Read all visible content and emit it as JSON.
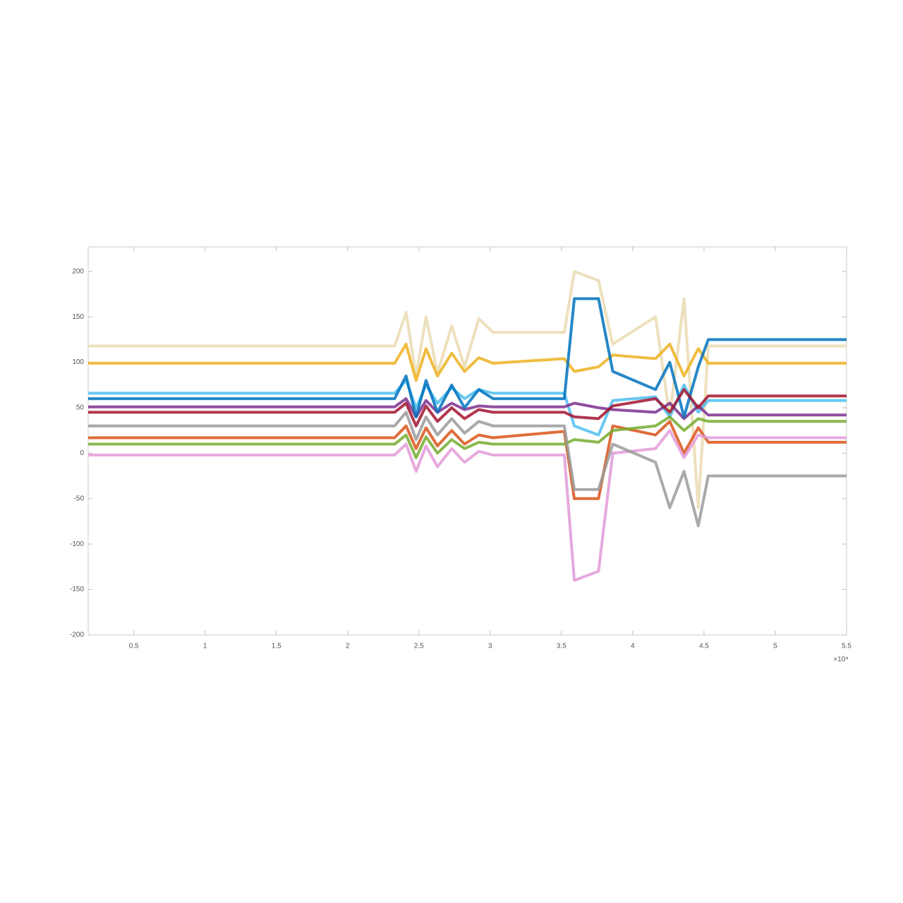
{
  "chart_data": {
    "type": "line",
    "x": [
      0.18,
      2.33,
      2.41,
      2.48,
      2.55,
      2.63,
      2.73,
      2.82,
      2.92,
      3.02,
      3.52,
      3.59,
      3.76,
      3.86,
      4.16,
      4.26,
      4.36,
      4.46,
      4.53,
      5.5
    ],
    "series": [
      {
        "color": "#eadbb0",
        "values": [
          118,
          118,
          155,
          85,
          150,
          88,
          140,
          95,
          148,
          133,
          133,
          200,
          190,
          120,
          150,
          40,
          170,
          -60,
          118,
          118
        ]
      },
      {
        "color": "#edb120",
        "values": [
          99,
          99,
          120,
          80,
          115,
          85,
          110,
          90,
          105,
          99,
          104,
          90,
          95,
          108,
          104,
          120,
          85,
          115,
          99,
          99
        ]
      },
      {
        "color": "#4dbeee",
        "values": [
          66,
          66,
          80,
          50,
          75,
          55,
          72,
          60,
          70,
          66,
          66,
          30,
          20,
          58,
          62,
          40,
          75,
          45,
          58,
          58
        ]
      },
      {
        "color": "#7e2f8e",
        "values": [
          51,
          51,
          60,
          40,
          58,
          45,
          55,
          48,
          52,
          51,
          51,
          55,
          50,
          48,
          45,
          55,
          38,
          52,
          42,
          42
        ]
      },
      {
        "color": "#d95319",
        "values": [
          17,
          17,
          30,
          5,
          28,
          8,
          25,
          10,
          20,
          17,
          24,
          -50,
          -50,
          30,
          20,
          35,
          0,
          28,
          12,
          12
        ]
      },
      {
        "color": "#77ac30",
        "values": [
          10,
          10,
          20,
          -5,
          18,
          0,
          15,
          5,
          12,
          10,
          10,
          15,
          12,
          25,
          30,
          40,
          25,
          38,
          35,
          35
        ]
      },
      {
        "color": "#e39ad8",
        "values": [
          -2,
          -2,
          10,
          -20,
          8,
          -15,
          5,
          -10,
          2,
          -2,
          -2,
          -140,
          -130,
          0,
          5,
          25,
          -5,
          20,
          17,
          17
        ]
      },
      {
        "color": "#0072bd",
        "values": [
          60,
          60,
          85,
          40,
          80,
          45,
          75,
          50,
          70,
          60,
          60,
          170,
          170,
          90,
          70,
          100,
          40,
          95,
          125,
          125
        ]
      },
      {
        "color": "#a2142f",
        "values": [
          45,
          45,
          55,
          30,
          52,
          35,
          50,
          38,
          48,
          45,
          45,
          40,
          38,
          52,
          60,
          45,
          70,
          50,
          63,
          63
        ]
      },
      {
        "color": "#9a9a9a",
        "values": [
          30,
          30,
          45,
          15,
          40,
          20,
          38,
          22,
          35,
          30,
          30,
          -40,
          -40,
          10,
          -10,
          -60,
          -20,
          -80,
          -25,
          -25
        ]
      }
    ],
    "xlim": [
      0.18,
      5.5
    ],
    "xticks": [
      0.5,
      1,
      1.5,
      2,
      2.5,
      3,
      3.5,
      4,
      4.5,
      5,
      5.5
    ],
    "ylim": [
      -200,
      227
    ],
    "yticks": [
      -200,
      -150,
      -100,
      -50,
      0,
      50,
      100,
      150,
      200
    ],
    "x_exponent_label": "×10⁴",
    "grid": false
  }
}
